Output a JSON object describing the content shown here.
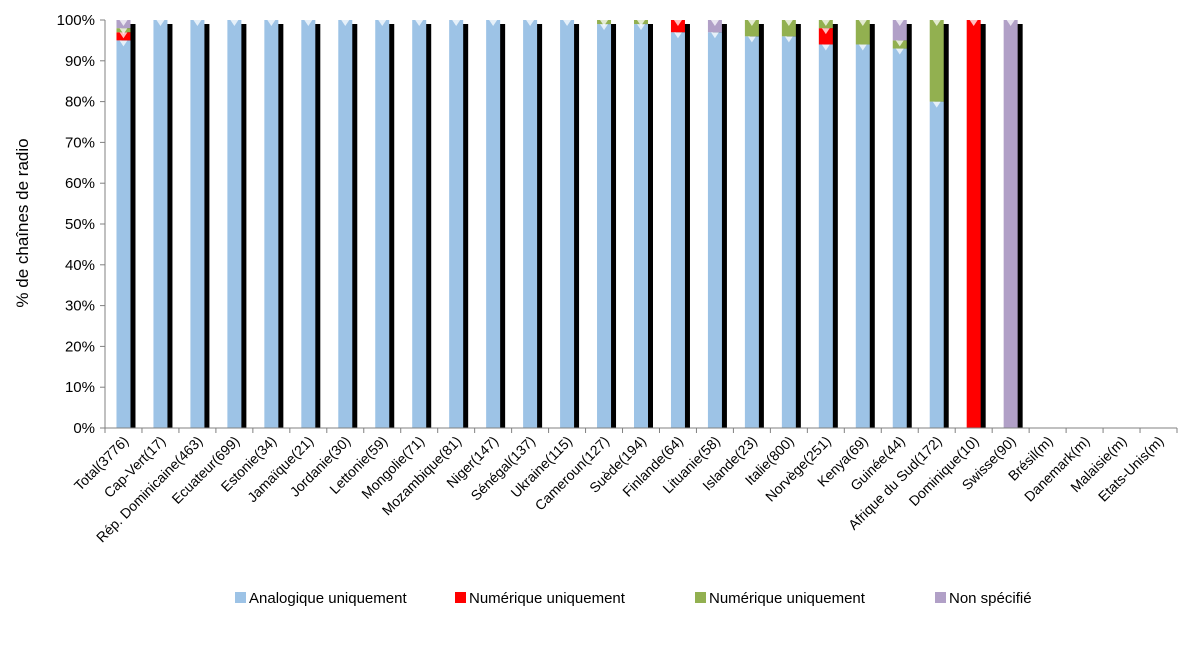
{
  "chart_data": {
    "type": "bar",
    "stacked": true,
    "ylabel": "% de chaînes de radio",
    "ylim": [
      0,
      100
    ],
    "yticks": [
      "0%",
      "10%",
      "20%",
      "30%",
      "40%",
      "50%",
      "60%",
      "70%",
      "80%",
      "90%",
      "100%"
    ],
    "grid": false,
    "legend_position": "bottom",
    "categories": [
      "Total(3776)",
      "Cap-Vert(17)",
      "Rép. Dominicaine(463)",
      "Ecuateur(699)",
      "Estonie(34)",
      "Jamaïque(21)",
      "Jordanie(30)",
      "Lettonie(59)",
      "Mongolie(71)",
      "Mozambique(81)",
      "Niger(147)",
      "Sénégal(137)",
      "Ukraine(115)",
      "Cameroun(127)",
      "Suède(194)",
      "Finlande(64)",
      "Lituanie(58)",
      "Islande(23)",
      "Italie(800)",
      "Norvège(251)",
      "Kenya(69)",
      "Guinée(44)",
      "Afrique du Sud(172)",
      "Dominique(10)",
      "Swisse(90)",
      "Brésil(m)",
      "Danemark(m)",
      "Malaisie(m)",
      "Etats-Unis(m)"
    ],
    "series": [
      {
        "name": "Analogique uniquement",
        "color": "#9dc3e6",
        "values": [
          95,
          100,
          100,
          100,
          100,
          100,
          100,
          100,
          100,
          100,
          100,
          100,
          100,
          99,
          99,
          97,
          97,
          96,
          96,
          94,
          94,
          93,
          80,
          0,
          0,
          0,
          0,
          0,
          0
        ]
      },
      {
        "name": "Numérique uniquement",
        "color": "#ff0000",
        "values": [
          2,
          0,
          0,
          0,
          0,
          0,
          0,
          0,
          0,
          0,
          0,
          0,
          0,
          0,
          0,
          3,
          0,
          0,
          0,
          4,
          0,
          0,
          0,
          100,
          0,
          0,
          0,
          0,
          0
        ]
      },
      {
        "name": "Numérique uniquement",
        "color": "#92b050",
        "values": [
          1,
          0,
          0,
          0,
          0,
          0,
          0,
          0,
          0,
          0,
          0,
          0,
          0,
          1,
          1,
          0,
          0,
          4,
          4,
          2,
          6,
          2,
          20,
          0,
          0,
          0,
          0,
          0,
          0
        ]
      },
      {
        "name": "Non spécifié",
        "color": "#b1a0c7",
        "values": [
          2,
          0,
          0,
          0,
          0,
          0,
          0,
          0,
          0,
          0,
          0,
          0,
          0,
          0,
          0,
          0,
          3,
          0,
          0,
          0,
          0,
          5,
          0,
          0,
          100,
          0,
          0,
          0,
          0
        ]
      }
    ]
  }
}
